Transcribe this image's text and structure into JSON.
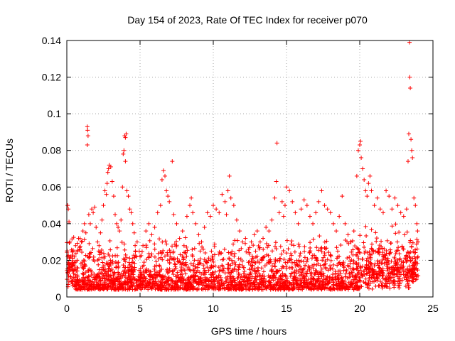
{
  "chart_data": {
    "type": "scatter",
    "title": "Day 154 of 2023, Rate Of TEC Index for receiver p070",
    "xlabel": "GPS time / hours",
    "ylabel": "ROTI / TECUs",
    "xlim": [
      0,
      25
    ],
    "ylim": [
      0,
      0.14
    ],
    "xticks": [
      0,
      5,
      10,
      15,
      20,
      25
    ],
    "yticks": [
      0,
      0.02,
      0.04,
      0.06,
      0.08,
      0.1,
      0.12,
      0.14
    ],
    "xtick_labels": [
      "0",
      "5",
      "10",
      "15",
      "20",
      "25"
    ],
    "ytick_labels": [
      "0",
      "0.02",
      "0.04",
      "0.06",
      "0.08",
      "0.1",
      "0.12",
      "0.14"
    ],
    "grid": true,
    "marker": "+",
    "color": "#ff0000",
    "series": [
      {
        "points": [
          [
            0.05,
            0.05
          ],
          [
            0.1,
            0.048
          ],
          [
            0.15,
            0.041
          ],
          [
            0.2,
            0.03
          ],
          [
            0.25,
            0.022
          ],
          [
            0.3,
            0.018
          ],
          [
            0.4,
            0.025
          ],
          [
            0.5,
            0.015
          ],
          [
            0.6,
            0.028
          ],
          [
            0.7,
            0.02
          ],
          [
            0.8,
            0.032
          ],
          [
            0.9,
            0.026
          ],
          [
            1.0,
            0.03
          ],
          [
            1.1,
            0.036
          ],
          [
            1.2,
            0.04
          ],
          [
            1.3,
            0.035
          ],
          [
            1.4,
            0.093
          ],
          [
            1.42,
            0.091
          ],
          [
            1.45,
            0.088
          ],
          [
            1.4,
            0.083
          ],
          [
            1.5,
            0.045
          ],
          [
            1.6,
            0.04
          ],
          [
            1.7,
            0.048
          ],
          [
            1.8,
            0.046
          ],
          [
            1.9,
            0.049
          ],
          [
            2.0,
            0.038
          ],
          [
            2.1,
            0.03
          ],
          [
            2.2,
            0.028
          ],
          [
            2.3,
            0.035
          ],
          [
            2.4,
            0.042
          ],
          [
            2.5,
            0.05
          ],
          [
            2.6,
            0.058
          ],
          [
            2.7,
            0.056
          ],
          [
            2.75,
            0.062
          ],
          [
            2.8,
            0.068
          ],
          [
            2.85,
            0.07
          ],
          [
            2.9,
            0.072
          ],
          [
            3.0,
            0.071
          ],
          [
            3.1,
            0.063
          ],
          [
            3.2,
            0.055
          ],
          [
            3.3,
            0.045
          ],
          [
            3.4,
            0.04
          ],
          [
            3.5,
            0.038
          ],
          [
            3.6,
            0.036
          ],
          [
            3.7,
            0.042
          ],
          [
            3.8,
            0.06
          ],
          [
            3.85,
            0.078
          ],
          [
            3.9,
            0.08
          ],
          [
            3.95,
            0.088
          ],
          [
            4.0,
            0.087
          ],
          [
            4.05,
            0.089
          ],
          [
            4.0,
            0.074
          ],
          [
            4.1,
            0.058
          ],
          [
            4.2,
            0.055
          ],
          [
            4.3,
            0.048
          ],
          [
            4.4,
            0.046
          ],
          [
            4.5,
            0.04
          ],
          [
            4.6,
            0.035
          ],
          [
            4.8,
            0.03
          ],
          [
            5.0,
            0.022
          ],
          [
            5.2,
            0.028
          ],
          [
            5.4,
            0.036
          ],
          [
            5.6,
            0.04
          ],
          [
            5.8,
            0.034
          ],
          [
            6.0,
            0.038
          ],
          [
            6.2,
            0.046
          ],
          [
            6.4,
            0.05
          ],
          [
            6.5,
            0.064
          ],
          [
            6.6,
            0.069
          ],
          [
            6.7,
            0.066
          ],
          [
            6.8,
            0.058
          ],
          [
            6.9,
            0.055
          ],
          [
            7.0,
            0.052
          ],
          [
            7.2,
            0.074
          ],
          [
            7.3,
            0.045
          ],
          [
            7.5,
            0.04
          ],
          [
            7.7,
            0.032
          ],
          [
            7.9,
            0.036
          ],
          [
            8.0,
            0.028
          ],
          [
            8.2,
            0.044
          ],
          [
            8.4,
            0.05
          ],
          [
            8.5,
            0.054
          ],
          [
            8.6,
            0.046
          ],
          [
            8.8,
            0.04
          ],
          [
            9.0,
            0.034
          ],
          [
            9.2,
            0.03
          ],
          [
            9.4,
            0.038
          ],
          [
            9.6,
            0.046
          ],
          [
            9.8,
            0.044
          ],
          [
            10.0,
            0.05
          ],
          [
            10.2,
            0.048
          ],
          [
            10.4,
            0.046
          ],
          [
            10.6,
            0.056
          ],
          [
            10.8,
            0.052
          ],
          [
            10.9,
            0.045
          ],
          [
            11.0,
            0.058
          ],
          [
            11.1,
            0.066
          ],
          [
            11.2,
            0.054
          ],
          [
            11.4,
            0.05
          ],
          [
            11.6,
            0.042
          ],
          [
            11.8,
            0.036
          ],
          [
            12.0,
            0.03
          ],
          [
            12.2,
            0.032
          ],
          [
            12.4,
            0.026
          ],
          [
            12.6,
            0.03
          ],
          [
            12.8,
            0.034
          ],
          [
            13.0,
            0.036
          ],
          [
            13.2,
            0.03
          ],
          [
            13.4,
            0.032
          ],
          [
            13.6,
            0.038
          ],
          [
            13.8,
            0.036
          ],
          [
            14.0,
            0.042
          ],
          [
            14.2,
            0.054
          ],
          [
            14.3,
            0.063
          ],
          [
            14.35,
            0.084
          ],
          [
            14.5,
            0.046
          ],
          [
            14.7,
            0.052
          ],
          [
            14.8,
            0.044
          ],
          [
            14.9,
            0.05
          ],
          [
            15.0,
            0.06
          ],
          [
            15.2,
            0.058
          ],
          [
            15.4,
            0.052
          ],
          [
            15.6,
            0.046
          ],
          [
            15.8,
            0.04
          ],
          [
            16.0,
            0.048
          ],
          [
            16.2,
            0.053
          ],
          [
            16.4,
            0.05
          ],
          [
            16.6,
            0.044
          ],
          [
            16.8,
            0.04
          ],
          [
            17.0,
            0.046
          ],
          [
            17.2,
            0.052
          ],
          [
            17.4,
            0.058
          ],
          [
            17.6,
            0.05
          ],
          [
            17.8,
            0.048
          ],
          [
            18.0,
            0.046
          ],
          [
            18.2,
            0.04
          ],
          [
            18.4,
            0.036
          ],
          [
            18.6,
            0.044
          ],
          [
            18.8,
            0.055
          ],
          [
            19.0,
            0.04
          ],
          [
            19.2,
            0.034
          ],
          [
            19.4,
            0.03
          ],
          [
            19.6,
            0.036
          ],
          [
            19.8,
            0.066
          ],
          [
            19.9,
            0.08
          ],
          [
            20.0,
            0.083
          ],
          [
            20.05,
            0.085
          ],
          [
            20.1,
            0.076
          ],
          [
            20.2,
            0.07
          ],
          [
            20.3,
            0.064
          ],
          [
            20.4,
            0.058
          ],
          [
            20.5,
            0.055
          ],
          [
            20.6,
            0.062
          ],
          [
            20.7,
            0.066
          ],
          [
            20.8,
            0.058
          ],
          [
            21.0,
            0.05
          ],
          [
            21.2,
            0.054
          ],
          [
            21.4,
            0.048
          ],
          [
            21.6,
            0.046
          ],
          [
            21.8,
            0.058
          ],
          [
            22.0,
            0.055
          ],
          [
            22.2,
            0.048
          ],
          [
            22.4,
            0.054
          ],
          [
            22.6,
            0.05
          ],
          [
            22.8,
            0.046
          ],
          [
            23.0,
            0.044
          ],
          [
            23.2,
            0.048
          ],
          [
            23.3,
            0.074
          ],
          [
            23.35,
            0.089
          ],
          [
            23.4,
            0.139
          ],
          [
            23.42,
            0.12
          ],
          [
            23.45,
            0.114
          ],
          [
            23.5,
            0.086
          ],
          [
            23.55,
            0.08
          ],
          [
            23.6,
            0.076
          ],
          [
            23.7,
            0.054
          ],
          [
            23.8,
            0.05
          ],
          [
            23.9,
            0.04
          ],
          [
            23.95,
            0.036
          ],
          [
            23.98,
            0.03
          ]
        ]
      }
    ]
  }
}
